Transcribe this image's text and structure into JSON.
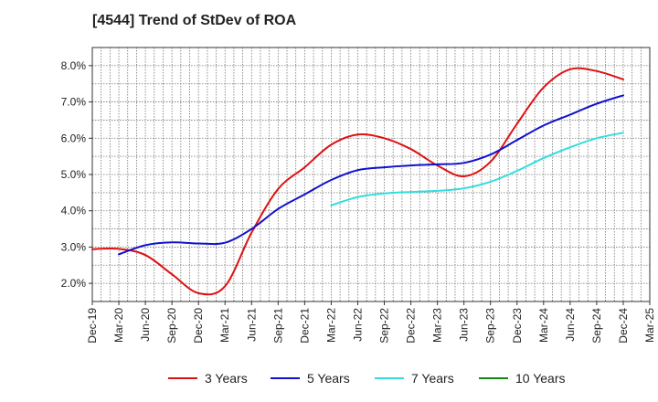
{
  "chart_data": {
    "type": "line",
    "title": "[4544]  Trend of StDev of ROA",
    "xlabel": "",
    "ylabel": "",
    "ylim": [
      1.5,
      8.5
    ],
    "yticks": [
      2.0,
      3.0,
      4.0,
      5.0,
      6.0,
      7.0,
      8.0
    ],
    "ytick_labels": [
      "2.0%",
      "3.0%",
      "4.0%",
      "5.0%",
      "6.0%",
      "7.0%",
      "8.0%"
    ],
    "categories": [
      "Dec-19",
      "Mar-20",
      "Jun-20",
      "Sep-20",
      "Dec-20",
      "Mar-21",
      "Jun-21",
      "Sep-21",
      "Dec-21",
      "Mar-22",
      "Jun-22",
      "Sep-22",
      "Dec-22",
      "Mar-23",
      "Jun-23",
      "Sep-23",
      "Dec-23",
      "Mar-24",
      "Jun-24",
      "Sep-24",
      "Dec-24",
      "Mar-25"
    ],
    "grid": true,
    "legend_position": "bottom",
    "series": [
      {
        "name": "3 Years",
        "color": "#dd1111",
        "values": [
          2.94,
          2.95,
          2.78,
          2.25,
          1.73,
          1.92,
          3.4,
          4.6,
          5.2,
          5.82,
          6.1,
          6.0,
          5.7,
          5.25,
          4.95,
          5.35,
          6.4,
          7.4,
          7.9,
          7.85,
          7.62,
          null
        ]
      },
      {
        "name": "5 Years",
        "color": "#1111cc",
        "values": [
          null,
          2.8,
          3.05,
          3.13,
          3.1,
          3.12,
          3.5,
          4.05,
          4.45,
          4.85,
          5.12,
          5.2,
          5.25,
          5.28,
          5.32,
          5.55,
          5.95,
          6.35,
          6.65,
          6.95,
          7.18,
          null
        ]
      },
      {
        "name": "7 Years",
        "color": "#33dddd",
        "values": [
          null,
          null,
          null,
          null,
          null,
          null,
          null,
          null,
          null,
          4.15,
          4.38,
          4.48,
          4.52,
          4.55,
          4.62,
          4.8,
          5.1,
          5.45,
          5.75,
          6.0,
          6.15,
          null
        ]
      },
      {
        "name": "10 Years",
        "color": "#118811",
        "values": [
          null,
          null,
          null,
          null,
          null,
          null,
          null,
          null,
          null,
          null,
          null,
          null,
          null,
          null,
          null,
          null,
          null,
          null,
          null,
          null,
          null,
          null
        ]
      }
    ]
  }
}
